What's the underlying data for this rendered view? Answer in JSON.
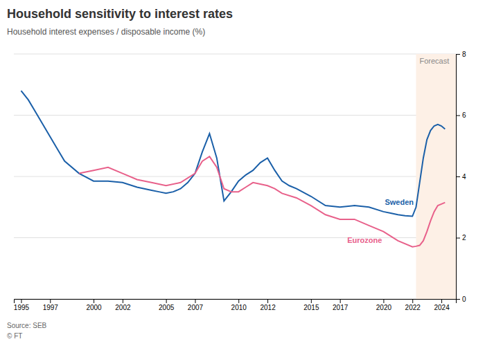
{
  "chart_data": {
    "type": "line",
    "title": "Household sensitivity to interest rates",
    "subtitle": "Household interest expenses / disposable income (%)",
    "footnotes": [
      "Source: SEB",
      "© FT"
    ],
    "xlim": [
      1994.5,
      2025.0
    ],
    "xticks": [
      1995,
      1997,
      2000,
      2002,
      2005,
      2007,
      2010,
      2012,
      2015,
      2017,
      2020,
      2022,
      2024
    ],
    "ylim": [
      0,
      8
    ],
    "yticks": [
      0,
      2,
      4,
      6,
      8
    ],
    "grid": true,
    "shaded_region": {
      "x0": 2022.25,
      "x1": 2025.0,
      "label": "Forecast",
      "color": "#fdf0e6"
    },
    "series": [
      {
        "name": "Sweden",
        "color": "#1a5fa8",
        "x": [
          1995,
          1995.5,
          1996,
          1996.5,
          1997,
          1997.5,
          1998,
          1999,
          2000,
          2001,
          2002,
          2003,
          2004,
          2004.5,
          2005,
          2005.5,
          2006,
          2006.5,
          2007,
          2007.5,
          2008,
          2008.5,
          2009,
          2009.5,
          2010,
          2010.5,
          2011,
          2011.5,
          2012,
          2012.5,
          2013,
          2013.5,
          2014,
          2015,
          2016,
          2017,
          2018,
          2019,
          2020,
          2020.5,
          2021,
          2021.5,
          2022,
          2022.25,
          2022.5,
          2022.75,
          2023,
          2023.25,
          2023.5,
          2023.75,
          2024,
          2024.25
        ],
        "values": [
          6.8,
          6.5,
          6.1,
          5.7,
          5.3,
          4.9,
          4.5,
          4.1,
          3.85,
          3.85,
          3.8,
          3.65,
          3.55,
          3.5,
          3.45,
          3.5,
          3.6,
          3.8,
          4.1,
          4.8,
          5.4,
          4.6,
          3.2,
          3.5,
          3.85,
          4.05,
          4.2,
          4.45,
          4.6,
          4.2,
          3.85,
          3.7,
          3.6,
          3.35,
          3.05,
          3.0,
          3.05,
          3.0,
          2.85,
          2.8,
          2.75,
          2.72,
          2.7,
          3.0,
          3.8,
          4.6,
          5.2,
          5.5,
          5.65,
          5.7,
          5.65,
          5.55
        ]
      },
      {
        "name": "Eurozone",
        "color": "#e8608a",
        "x": [
          1999,
          2000,
          2001,
          2002,
          2003,
          2004,
          2005,
          2006,
          2007,
          2007.5,
          2008,
          2008.5,
          2009,
          2009.5,
          2010,
          2010.5,
          2011,
          2011.5,
          2012,
          2012.5,
          2013,
          2014,
          2015,
          2016,
          2017,
          2018,
          2019,
          2020,
          2021,
          2022,
          2022.25,
          2022.5,
          2022.75,
          2023,
          2023.25,
          2023.5,
          2023.75,
          2024,
          2024.25
        ],
        "values": [
          4.1,
          4.2,
          4.3,
          4.1,
          3.9,
          3.8,
          3.7,
          3.8,
          4.1,
          4.5,
          4.65,
          4.3,
          3.6,
          3.5,
          3.5,
          3.65,
          3.8,
          3.75,
          3.7,
          3.6,
          3.45,
          3.3,
          3.05,
          2.75,
          2.6,
          2.6,
          2.4,
          2.2,
          1.9,
          1.7,
          1.72,
          1.75,
          1.9,
          2.2,
          2.55,
          2.85,
          3.05,
          3.1,
          3.15
        ]
      }
    ]
  }
}
